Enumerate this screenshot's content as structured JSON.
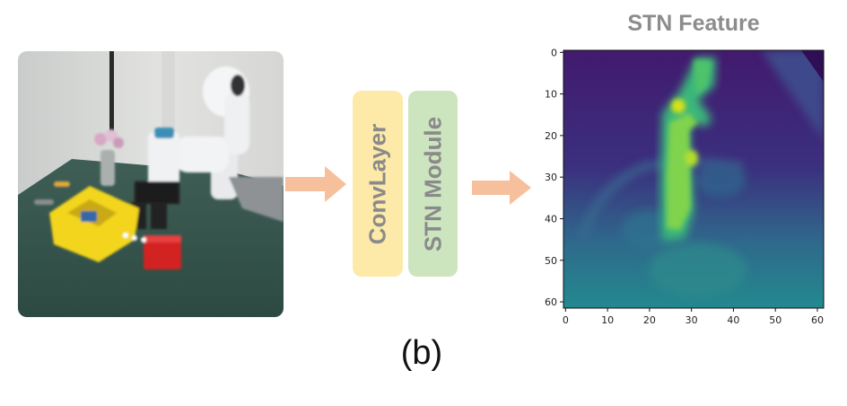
{
  "blocks": {
    "conv_label": "ConvLayer",
    "stn_label": "STN Module"
  },
  "feature": {
    "title": "STN Feature",
    "x_ticks": [
      "0",
      "10",
      "20",
      "30",
      "40",
      "50",
      "60"
    ],
    "y_ticks": [
      "0",
      "10",
      "20",
      "30",
      "40",
      "50",
      "60"
    ]
  },
  "caption": "(b)",
  "colors": {
    "arrow": "#f7c09c",
    "conv_block": "#fde9a8",
    "stn_block": "#cce5bf",
    "heat_low": "#3b0f70",
    "heat_mid": "#21908d",
    "heat_high": "#fde725"
  }
}
